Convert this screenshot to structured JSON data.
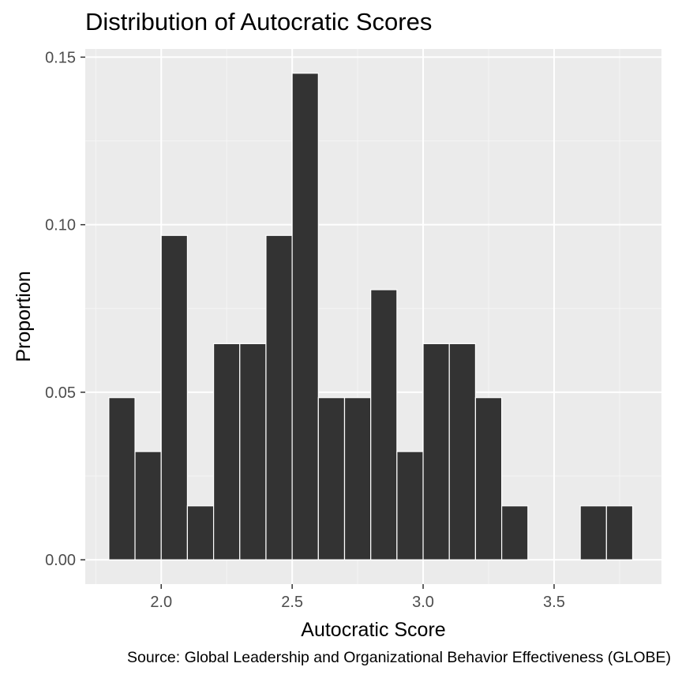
{
  "chart_data": {
    "type": "bar",
    "title": "Distribution of Autocratic Scores",
    "xlabel": "Autocratic Score",
    "ylabel": "Proportion",
    "caption": "Source: Global Leadership and Organizational Behavior Effectiveness (GLOBE)",
    "bin_width": 0.1,
    "bins": [
      {
        "x": 1.85,
        "y": 0.0484
      },
      {
        "x": 1.95,
        "y": 0.0323
      },
      {
        "x": 2.05,
        "y": 0.0968
      },
      {
        "x": 2.15,
        "y": 0.0161
      },
      {
        "x": 2.25,
        "y": 0.0645
      },
      {
        "x": 2.35,
        "y": 0.0645
      },
      {
        "x": 2.45,
        "y": 0.0968
      },
      {
        "x": 2.55,
        "y": 0.1452
      },
      {
        "x": 2.65,
        "y": 0.0484
      },
      {
        "x": 2.75,
        "y": 0.0484
      },
      {
        "x": 2.85,
        "y": 0.0806
      },
      {
        "x": 2.95,
        "y": 0.0323
      },
      {
        "x": 3.05,
        "y": 0.0645
      },
      {
        "x": 3.15,
        "y": 0.0645
      },
      {
        "x": 3.25,
        "y": 0.0484
      },
      {
        "x": 3.35,
        "y": 0.0161
      },
      {
        "x": 3.45,
        "y": 0
      },
      {
        "x": 3.55,
        "y": 0
      },
      {
        "x": 3.65,
        "y": 0.0161
      },
      {
        "x": 3.75,
        "y": 0.0161
      }
    ],
    "xlim": [
      1.71,
      3.91
    ],
    "ylim": [
      -0.00726,
      0.15245
    ],
    "x_ticks": [
      2.0,
      2.5,
      3.0,
      3.5
    ],
    "x_tick_labels": [
      "2.0",
      "2.5",
      "3.0",
      "3.5"
    ],
    "y_ticks": [
      0.0,
      0.05,
      0.1,
      0.15
    ],
    "y_tick_labels": [
      "0.00",
      "0.05",
      "0.10",
      "0.15"
    ],
    "grid": true,
    "colors": {
      "panel_background": "#ebebeb",
      "grid_major": "#ffffff",
      "grid_minor": "#f5f5f5",
      "bar_fill": "#333333",
      "bar_outline": "#ffffff",
      "tick": "#333333"
    }
  }
}
